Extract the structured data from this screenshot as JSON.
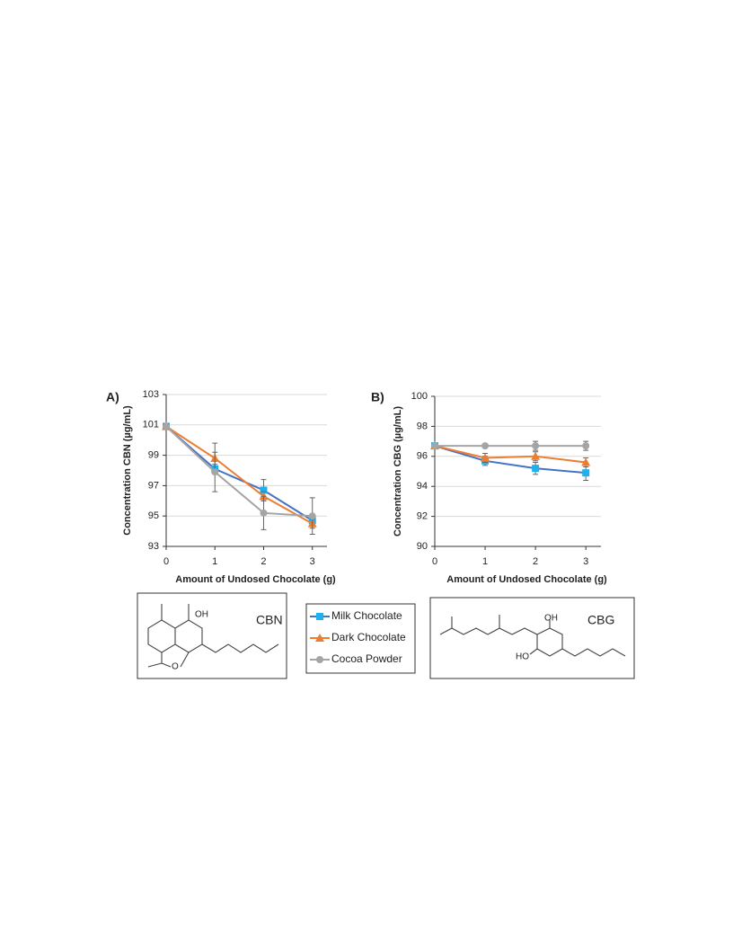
{
  "chart_data": [
    {
      "type": "line",
      "label": "A)",
      "x_label": "Amount of Undosed Chocolate (g)",
      "y_label": "Concentration CBN (µg/mL)",
      "x": [
        0,
        1,
        2,
        3
      ],
      "xlim": [
        0,
        3.3
      ],
      "xticks": [
        0,
        1,
        2,
        3
      ],
      "ylim": [
        93,
        103
      ],
      "yticks": [
        93,
        95,
        97,
        99,
        101,
        103
      ],
      "grid": true,
      "series": [
        {
          "name": "Milk Chocolate",
          "color": "#4472c4",
          "marker_color": "#1fb0f0",
          "marker": "square",
          "values": [
            100.9,
            98.1,
            96.7,
            94.7
          ],
          "errors": [
            0.2,
            0.3,
            0.7,
            0.4
          ]
        },
        {
          "name": "Dark Chocolate",
          "color": "#ed7d31",
          "marker_color": "#ed7d31",
          "marker": "triangle",
          "values": [
            100.9,
            98.8,
            96.3,
            94.5
          ],
          "errors": [
            0.2,
            1.0,
            0.3,
            0.3
          ]
        },
        {
          "name": "Cocoa Powder",
          "color": "#a5a5a5",
          "marker_color": "#a5a5a5",
          "marker": "circle",
          "values": [
            100.9,
            97.9,
            95.2,
            95.0
          ],
          "errors": [
            0.2,
            1.3,
            1.1,
            1.2
          ]
        }
      ]
    },
    {
      "type": "line",
      "label": "B)",
      "x_label": "Amount of Undosed Chocolate (g)",
      "y_label": "Concentration CBG (µg/mL)",
      "x": [
        0,
        1,
        2,
        3
      ],
      "xlim": [
        0,
        3.3
      ],
      "xticks": [
        0,
        1,
        2,
        3
      ],
      "ylim": [
        90,
        100
      ],
      "yticks": [
        90,
        92,
        94,
        96,
        98,
        100
      ],
      "grid": true,
      "series": [
        {
          "name": "Milk Chocolate",
          "color": "#4472c4",
          "marker_color": "#1fb0f0",
          "marker": "square",
          "values": [
            96.7,
            95.7,
            95.2,
            94.9
          ],
          "errors": [
            0.1,
            0.3,
            0.4,
            0.5
          ]
        },
        {
          "name": "Dark Chocolate",
          "color": "#ed7d31",
          "marker_color": "#ed7d31",
          "marker": "triangle",
          "values": [
            96.7,
            95.9,
            96.0,
            95.6
          ],
          "errors": [
            0.1,
            0.3,
            0.3,
            0.3
          ]
        },
        {
          "name": "Cocoa Powder",
          "color": "#a5a5a5",
          "marker_color": "#a5a5a5",
          "marker": "circle",
          "values": [
            96.7,
            96.7,
            96.7,
            96.7
          ],
          "errors": [
            0.1,
            0.1,
            0.3,
            0.3
          ]
        }
      ]
    }
  ],
  "structures": [
    {
      "name": "CBN",
      "atoms": [
        "OH",
        "O"
      ]
    },
    {
      "name": "CBG",
      "atoms": [
        "OH",
        "HO"
      ]
    }
  ]
}
